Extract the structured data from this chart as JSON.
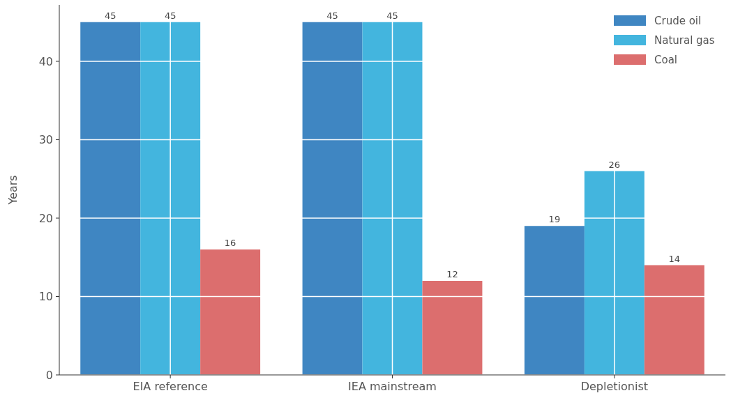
{
  "chart_data": {
    "type": "bar",
    "ylabel": "Years",
    "categories": [
      "EIA reference",
      "IEA mainstream",
      "Depletionist"
    ],
    "series": [
      {
        "name": "Crude oil",
        "color": "#3f86c2",
        "values": [
          45,
          45,
          19
        ]
      },
      {
        "name": "Natural gas",
        "color": "#43b5de",
        "values": [
          45,
          45,
          26
        ]
      },
      {
        "name": "Coal",
        "color": "#dc6e6e",
        "values": [
          16,
          12,
          14
        ]
      }
    ],
    "ylim": [
      0,
      47.2
    ],
    "yticks": [
      0,
      10,
      20,
      30,
      40
    ],
    "grid": true,
    "legend": "top right",
    "data_labels": true
  }
}
